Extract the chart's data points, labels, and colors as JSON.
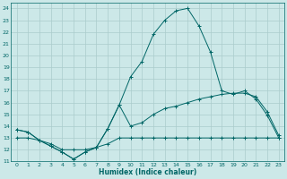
{
  "xlabel": "Humidex (Indice chaleur)",
  "bg_color": "#cce8e8",
  "grid_color": "#aacccc",
  "line_color": "#006666",
  "xlim": [
    -0.5,
    23.5
  ],
  "ylim": [
    11,
    24.5
  ],
  "x_ticks": [
    0,
    1,
    2,
    3,
    4,
    5,
    6,
    7,
    8,
    9,
    10,
    11,
    12,
    13,
    14,
    15,
    16,
    17,
    18,
    19,
    20,
    21,
    22,
    23
  ],
  "y_ticks": [
    11,
    12,
    13,
    14,
    15,
    16,
    17,
    18,
    19,
    20,
    21,
    22,
    23,
    24
  ],
  "series_high_x": [
    0,
    1,
    2,
    3,
    4,
    5,
    6,
    7,
    8,
    9,
    10,
    11,
    12,
    13,
    14,
    15,
    16,
    17,
    18,
    19,
    20,
    21,
    22,
    23
  ],
  "series_high_y": [
    13.7,
    13.5,
    12.8,
    12.3,
    11.8,
    11.2,
    11.8,
    12.2,
    13.8,
    15.8,
    18.2,
    19.5,
    21.8,
    23.0,
    23.8,
    24.0,
    22.5,
    20.3,
    17.0,
    16.7,
    17.0,
    16.3,
    14.9,
    13.0
  ],
  "series_mid_x": [
    0,
    1,
    2,
    3,
    4,
    5,
    6,
    7,
    8,
    9,
    10,
    11,
    12,
    13,
    14,
    15,
    16,
    17,
    18,
    19,
    20,
    21,
    22,
    23
  ],
  "series_mid_y": [
    13.7,
    13.5,
    12.8,
    12.3,
    11.8,
    11.2,
    11.8,
    12.2,
    13.8,
    15.8,
    14.0,
    14.3,
    15.0,
    15.5,
    15.7,
    16.0,
    16.3,
    16.5,
    16.7,
    16.8,
    16.8,
    16.5,
    15.2,
    13.2
  ],
  "series_low_x": [
    0,
    1,
    2,
    3,
    4,
    5,
    6,
    7,
    8,
    9,
    10,
    11,
    12,
    13,
    14,
    15,
    16,
    17,
    18,
    19,
    20,
    21,
    22,
    23
  ],
  "series_low_y": [
    13.0,
    13.0,
    12.8,
    12.5,
    12.0,
    12.0,
    12.0,
    12.2,
    12.5,
    13.0,
    13.0,
    13.0,
    13.0,
    13.0,
    13.0,
    13.0,
    13.0,
    13.0,
    13.0,
    13.0,
    13.0,
    13.0,
    13.0,
    13.0
  ]
}
